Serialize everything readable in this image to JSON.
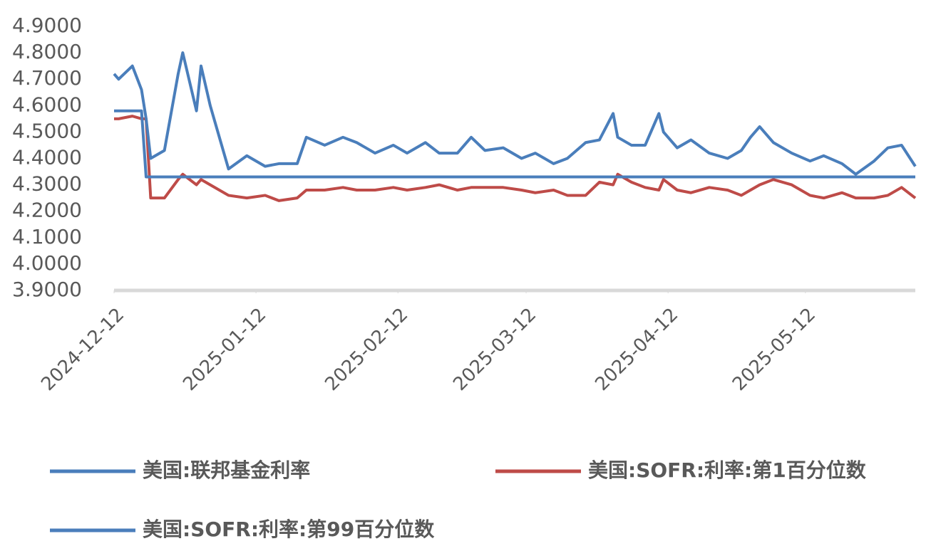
{
  "chart_data": {
    "type": "line",
    "x": [
      "2024-12-12",
      "2024-12-13",
      "2024-12-16",
      "2024-12-18",
      "2024-12-19",
      "2024-12-20",
      "2024-12-23",
      "2024-12-26",
      "2024-12-27",
      "2024-12-30",
      "2024-12-31",
      "2025-01-02",
      "2025-01-06",
      "2025-01-10",
      "2025-01-14",
      "2025-01-17",
      "2025-01-21",
      "2025-01-23",
      "2025-01-27",
      "2025-01-31",
      "2025-02-03",
      "2025-02-07",
      "2025-02-11",
      "2025-02-14",
      "2025-02-18",
      "2025-02-21",
      "2025-02-25",
      "2025-02-28",
      "2025-03-03",
      "2025-03-07",
      "2025-03-11",
      "2025-03-14",
      "2025-03-18",
      "2025-03-21",
      "2025-03-25",
      "2025-03-28",
      "2025-03-31",
      "2025-04-01",
      "2025-04-04",
      "2025-04-07",
      "2025-04-10",
      "2025-04-11",
      "2025-04-14",
      "2025-04-17",
      "2025-04-21",
      "2025-04-25",
      "2025-04-28",
      "2025-04-30",
      "2025-05-02",
      "2025-05-05",
      "2025-05-09",
      "2025-05-13",
      "2025-05-16",
      "2025-05-20",
      "2025-05-23",
      "2025-05-27",
      "2025-05-30",
      "2025-06-02",
      "2025-06-05"
    ],
    "series": [
      {
        "name": "美国:联邦基金利率",
        "color": "#4a7ebb",
        "values": [
          4.58,
          4.58,
          4.58,
          4.58,
          4.33,
          4.33,
          4.33,
          4.33,
          4.33,
          4.33,
          4.33,
          4.33,
          4.33,
          4.33,
          4.33,
          4.33,
          4.33,
          4.33,
          4.33,
          4.33,
          4.33,
          4.33,
          4.33,
          4.33,
          4.33,
          4.33,
          4.33,
          4.33,
          4.33,
          4.33,
          4.33,
          4.33,
          4.33,
          4.33,
          4.33,
          4.33,
          4.33,
          4.33,
          4.33,
          4.33,
          4.33,
          4.33,
          4.33,
          4.33,
          4.33,
          4.33,
          4.33,
          4.33,
          4.33,
          4.33,
          4.33,
          4.33,
          4.33,
          4.33,
          4.33,
          4.33,
          4.33,
          4.33,
          4.33
        ]
      },
      {
        "name": "美国:SOFR:利率:第1百分位数",
        "color": "#be4b48",
        "values": [
          4.55,
          4.55,
          4.56,
          4.55,
          4.55,
          4.25,
          4.25,
          4.32,
          4.34,
          4.3,
          4.32,
          4.3,
          4.26,
          4.25,
          4.26,
          4.24,
          4.25,
          4.28,
          4.28,
          4.29,
          4.28,
          4.28,
          4.29,
          4.28,
          4.29,
          4.3,
          4.28,
          4.29,
          4.29,
          4.29,
          4.28,
          4.27,
          4.28,
          4.26,
          4.26,
          4.31,
          4.3,
          4.34,
          4.31,
          4.29,
          4.28,
          4.32,
          4.28,
          4.27,
          4.29,
          4.28,
          4.26,
          4.28,
          4.3,
          4.32,
          4.3,
          4.26,
          4.25,
          4.27,
          4.25,
          4.25,
          4.26,
          4.29,
          4.25
        ]
      },
      {
        "name": "美国:SOFR:利率:第99百分位数",
        "color": "#4a7ebb",
        "values": [
          4.72,
          4.7,
          4.75,
          4.66,
          4.55,
          4.4,
          4.43,
          4.72,
          4.8,
          4.58,
          4.75,
          4.6,
          4.36,
          4.41,
          4.37,
          4.38,
          4.38,
          4.48,
          4.45,
          4.48,
          4.46,
          4.42,
          4.45,
          4.42,
          4.46,
          4.42,
          4.42,
          4.48,
          4.43,
          4.44,
          4.4,
          4.42,
          4.38,
          4.4,
          4.46,
          4.47,
          4.57,
          4.48,
          4.45,
          4.45,
          4.57,
          4.5,
          4.44,
          4.47,
          4.42,
          4.4,
          4.43,
          4.48,
          4.52,
          4.46,
          4.42,
          4.39,
          4.41,
          4.38,
          4.34,
          4.39,
          4.44,
          4.45,
          4.37
        ]
      }
    ],
    "xlim": [
      "2024-12-12",
      "2025-06-05"
    ],
    "xticks": [
      "2024-12-12",
      "2025-01-12",
      "2025-02-12",
      "2025-03-12",
      "2025-04-12",
      "2025-05-12"
    ],
    "ylim": [
      3.9,
      4.9
    ],
    "yticks": [
      {
        "value": 3.9,
        "label": "3.9000"
      },
      {
        "value": 4.0,
        "label": "4.0000"
      },
      {
        "value": 4.1,
        "label": "4.1000"
      },
      {
        "value": 4.2,
        "label": "4.2000"
      },
      {
        "value": 4.3,
        "label": "4.3000"
      },
      {
        "value": 4.4,
        "label": "4.4000"
      },
      {
        "value": 4.5,
        "label": "4.5000"
      },
      {
        "value": 4.6,
        "label": "4.6000"
      },
      {
        "value": 4.7,
        "label": "4.7000"
      },
      {
        "value": 4.8,
        "label": "4.8000"
      },
      {
        "value": 4.9,
        "label": "4.9000"
      }
    ]
  }
}
